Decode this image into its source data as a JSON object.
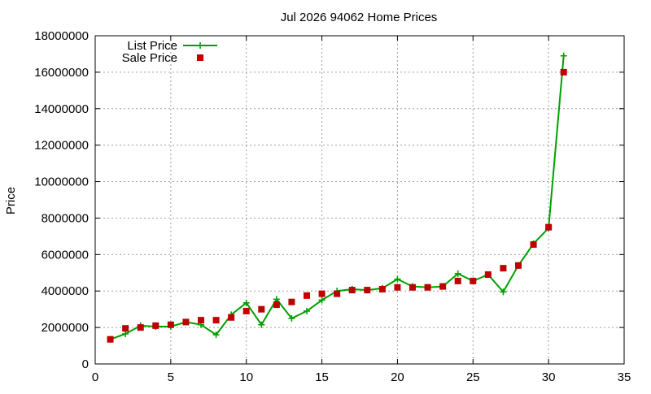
{
  "chart_data": {
    "type": "line",
    "title": "Jul 2026 94062 Home Prices",
    "xlabel": "",
    "ylabel": "Price",
    "xlim": [
      0,
      35
    ],
    "ylim": [
      0,
      18000000
    ],
    "xticks": [
      0,
      5,
      10,
      15,
      20,
      25,
      30,
      35
    ],
    "yticks": [
      0,
      2000000,
      4000000,
      6000000,
      8000000,
      10000000,
      12000000,
      14000000,
      16000000,
      18000000
    ],
    "grid": true,
    "legend_position": "top-left",
    "series": [
      {
        "name": "List Price",
        "style": "line-plus",
        "color": "#00a000",
        "x": [
          1,
          2,
          3,
          4,
          5,
          6,
          7,
          8,
          9,
          10,
          11,
          12,
          13,
          14,
          15,
          16,
          17,
          18,
          19,
          20,
          21,
          22,
          23,
          24,
          25,
          26,
          27,
          28,
          29,
          30,
          31
        ],
        "values": [
          1350000,
          1650000,
          2100000,
          2050000,
          2050000,
          2300000,
          2150000,
          1600000,
          2700000,
          3350000,
          2150000,
          3550000,
          2500000,
          2900000,
          3500000,
          4000000,
          4100000,
          4050000,
          4150000,
          4650000,
          4250000,
          4200000,
          4250000,
          4950000,
          4550000,
          4900000,
          3950000,
          5400000,
          6600000,
          7450000,
          16900000
        ]
      },
      {
        "name": "Sale Price",
        "style": "square",
        "color": "#c00000",
        "x": [
          1,
          2,
          3,
          4,
          5,
          6,
          7,
          8,
          9,
          10,
          11,
          12,
          13,
          14,
          15,
          16,
          17,
          18,
          19,
          20,
          21,
          22,
          23,
          24,
          25,
          26,
          27,
          28,
          29,
          30,
          31
        ],
        "values": [
          1350000,
          1950000,
          2000000,
          2100000,
          2150000,
          2300000,
          2400000,
          2400000,
          2550000,
          2900000,
          3000000,
          3250000,
          3400000,
          3750000,
          3850000,
          3850000,
          4050000,
          4050000,
          4100000,
          4200000,
          4200000,
          4200000,
          4250000,
          4550000,
          4550000,
          4900000,
          5250000,
          5400000,
          6550000,
          7500000,
          16000000
        ]
      }
    ]
  }
}
